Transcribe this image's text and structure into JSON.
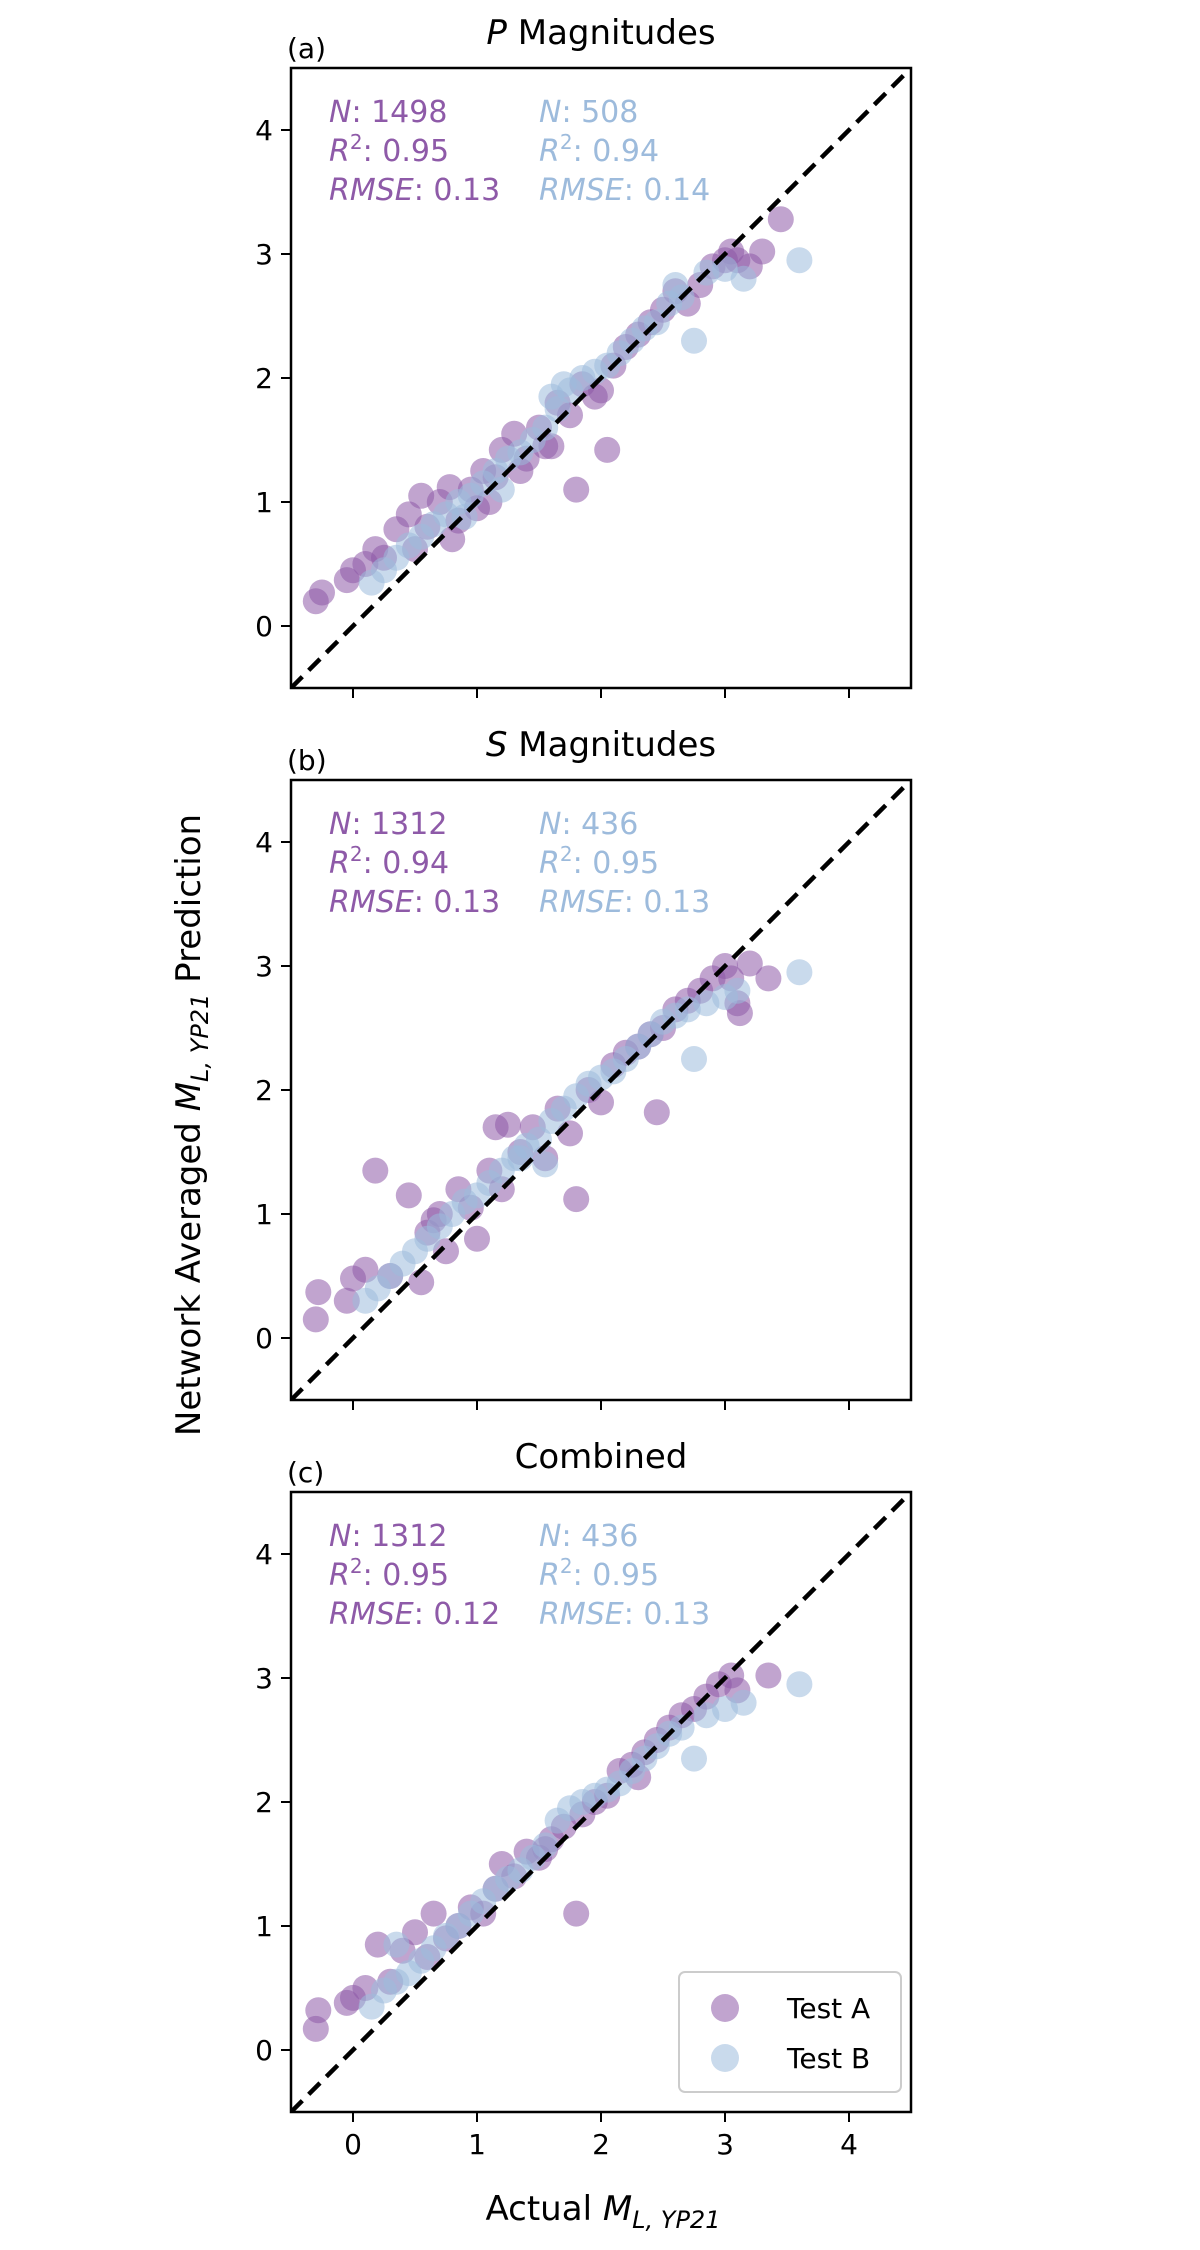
{
  "colors": {
    "test_a": "#8e5aa8",
    "test_b": "#9dbbdc",
    "identity_line": "#000000",
    "axes": "#000000"
  },
  "figure": {
    "ylabel_pre": "Network Averaged ",
    "ylabel_math": "M",
    "ylabel_sub": "L, YP21",
    "ylabel_post": " Prediction",
    "xlabel_pre": "Actual ",
    "xlabel_math": "M",
    "xlabel_sub": "L, YP21"
  },
  "legend": {
    "position": "lower-right",
    "entries": [
      "Test A",
      "Test B"
    ]
  },
  "chart_data": [
    {
      "type": "scatter",
      "panel_label": "(a)",
      "title_italic": "P",
      "title": " Magnitudes",
      "xlim": [
        -0.5,
        4.5
      ],
      "ylim": [
        -0.5,
        4.5
      ],
      "xticks": [
        0,
        1,
        2,
        3,
        4
      ],
      "yticks": [
        0,
        1,
        2,
        3,
        4
      ],
      "grid": false,
      "identity_line": true,
      "stats": [
        {
          "series": "Test A",
          "N": "1498",
          "R2": "0.95",
          "RMSE": "0.13"
        },
        {
          "series": "Test B",
          "N": "508",
          "R2": "0.94",
          "RMSE": "0.14"
        }
      ],
      "series": [
        {
          "name": "Test A",
          "points": [
            [
              -0.3,
              0.2
            ],
            [
              -0.25,
              0.27
            ],
            [
              -0.05,
              0.37
            ],
            [
              0.0,
              0.45
            ],
            [
              0.1,
              0.5
            ],
            [
              0.18,
              0.62
            ],
            [
              0.25,
              0.55
            ],
            [
              0.35,
              0.78
            ],
            [
              0.45,
              0.9
            ],
            [
              0.55,
              1.05
            ],
            [
              0.6,
              0.8
            ],
            [
              0.7,
              1.0
            ],
            [
              0.78,
              1.12
            ],
            [
              0.85,
              0.85
            ],
            [
              0.95,
              1.1
            ],
            [
              1.05,
              1.25
            ],
            [
              1.15,
              1.2
            ],
            [
              1.2,
              1.42
            ],
            [
              1.3,
              1.55
            ],
            [
              1.4,
              1.35
            ],
            [
              1.5,
              1.6
            ],
            [
              1.55,
              1.45
            ],
            [
              1.65,
              1.8
            ],
            [
              1.75,
              1.7
            ],
            [
              1.8,
              1.1
            ],
            [
              1.85,
              1.95
            ],
            [
              1.95,
              1.85
            ],
            [
              2.05,
              1.42
            ],
            [
              2.1,
              2.1
            ],
            [
              2.2,
              2.25
            ],
            [
              2.3,
              2.35
            ],
            [
              2.4,
              2.45
            ],
            [
              2.5,
              2.55
            ],
            [
              2.6,
              2.7
            ],
            [
              2.7,
              2.6
            ],
            [
              2.8,
              2.75
            ],
            [
              2.9,
              2.9
            ],
            [
              3.0,
              2.95
            ],
            [
              3.05,
              3.02
            ],
            [
              3.1,
              2.95
            ],
            [
              3.2,
              2.9
            ],
            [
              3.3,
              3.02
            ],
            [
              3.45,
              3.28
            ],
            [
              0.5,
              0.62
            ],
            [
              0.8,
              0.7
            ],
            [
              1.0,
              0.95
            ],
            [
              1.1,
              1.0
            ],
            [
              1.35,
              1.25
            ],
            [
              1.6,
              1.45
            ],
            [
              2.0,
              1.9
            ]
          ]
        },
        {
          "name": "Test B",
          "points": [
            [
              0.15,
              0.35
            ],
            [
              0.25,
              0.45
            ],
            [
              0.35,
              0.55
            ],
            [
              0.45,
              0.65
            ],
            [
              0.55,
              0.72
            ],
            [
              0.65,
              0.82
            ],
            [
              0.75,
              0.9
            ],
            [
              0.85,
              1.0
            ],
            [
              0.95,
              1.05
            ],
            [
              1.05,
              1.15
            ],
            [
              1.15,
              1.25
            ],
            [
              1.25,
              1.35
            ],
            [
              1.35,
              1.4
            ],
            [
              1.45,
              1.5
            ],
            [
              1.55,
              1.6
            ],
            [
              1.65,
              1.75
            ],
            [
              1.75,
              1.9
            ],
            [
              1.85,
              2.0
            ],
            [
              1.95,
              2.05
            ],
            [
              2.05,
              2.1
            ],
            [
              2.15,
              2.2
            ],
            [
              2.25,
              2.3
            ],
            [
              2.35,
              2.4
            ],
            [
              2.45,
              2.45
            ],
            [
              2.55,
              2.6
            ],
            [
              2.65,
              2.65
            ],
            [
              2.75,
              2.3
            ],
            [
              2.85,
              2.85
            ],
            [
              3.0,
              2.88
            ],
            [
              3.15,
              2.8
            ],
            [
              3.6,
              2.95
            ],
            [
              1.6,
              1.85
            ],
            [
              1.7,
              1.95
            ],
            [
              1.2,
              1.1
            ],
            [
              0.9,
              0.88
            ],
            [
              2.6,
              2.75
            ]
          ]
        }
      ]
    },
    {
      "type": "scatter",
      "panel_label": "(b)",
      "title_italic": "S",
      "title": " Magnitudes",
      "xlim": [
        -0.5,
        4.5
      ],
      "ylim": [
        -0.5,
        4.5
      ],
      "xticks": [
        0,
        1,
        2,
        3,
        4
      ],
      "yticks": [
        0,
        1,
        2,
        3,
        4
      ],
      "grid": false,
      "identity_line": true,
      "stats": [
        {
          "series": "Test A",
          "N": "1312",
          "R2": "0.94",
          "RMSE": "0.13"
        },
        {
          "series": "Test B",
          "N": "436",
          "R2": "0.95",
          "RMSE": "0.13"
        }
      ],
      "series": [
        {
          "name": "Test A",
          "points": [
            [
              -0.3,
              0.15
            ],
            [
              -0.28,
              0.37
            ],
            [
              -0.05,
              0.3
            ],
            [
              0.0,
              0.48
            ],
            [
              0.1,
              0.55
            ],
            [
              0.18,
              1.35
            ],
            [
              0.3,
              0.5
            ],
            [
              0.45,
              1.15
            ],
            [
              0.55,
              0.45
            ],
            [
              0.6,
              0.85
            ],
            [
              0.7,
              1.0
            ],
            [
              0.75,
              0.7
            ],
            [
              0.85,
              1.2
            ],
            [
              0.95,
              1.05
            ],
            [
              1.0,
              0.8
            ],
            [
              1.1,
              1.35
            ],
            [
              1.2,
              1.2
            ],
            [
              1.25,
              1.72
            ],
            [
              1.35,
              1.5
            ],
            [
              1.45,
              1.7
            ],
            [
              1.55,
              1.45
            ],
            [
              1.65,
              1.85
            ],
            [
              1.75,
              1.65
            ],
            [
              1.8,
              1.12
            ],
            [
              1.9,
              2.0
            ],
            [
              2.0,
              1.9
            ],
            [
              2.1,
              2.2
            ],
            [
              2.2,
              2.3
            ],
            [
              2.3,
              2.35
            ],
            [
              2.4,
              2.45
            ],
            [
              2.5,
              2.5
            ],
            [
              2.6,
              2.65
            ],
            [
              2.7,
              2.72
            ],
            [
              2.8,
              2.8
            ],
            [
              2.9,
              2.9
            ],
            [
              3.0,
              3.0
            ],
            [
              3.05,
              2.9
            ],
            [
              3.1,
              2.7
            ],
            [
              3.12,
              2.62
            ],
            [
              3.2,
              3.02
            ],
            [
              3.35,
              2.9
            ],
            [
              2.45,
              1.82
            ],
            [
              1.15,
              1.7
            ],
            [
              0.65,
              0.95
            ]
          ]
        },
        {
          "name": "Test B",
          "points": [
            [
              0.1,
              0.3
            ],
            [
              0.2,
              0.4
            ],
            [
              0.3,
              0.5
            ],
            [
              0.4,
              0.6
            ],
            [
              0.5,
              0.7
            ],
            [
              0.6,
              0.8
            ],
            [
              0.7,
              0.9
            ],
            [
              0.8,
              1.0
            ],
            [
              0.9,
              1.1
            ],
            [
              1.0,
              1.15
            ],
            [
              1.1,
              1.25
            ],
            [
              1.2,
              1.35
            ],
            [
              1.3,
              1.45
            ],
            [
              1.4,
              1.55
            ],
            [
              1.5,
              1.6
            ],
            [
              1.6,
              1.75
            ],
            [
              1.7,
              1.85
            ],
            [
              1.8,
              1.95
            ],
            [
              1.9,
              2.05
            ],
            [
              2.0,
              2.1
            ],
            [
              2.1,
              2.15
            ],
            [
              2.2,
              2.25
            ],
            [
              2.3,
              2.35
            ],
            [
              2.4,
              2.45
            ],
            [
              2.5,
              2.55
            ],
            [
              2.6,
              2.6
            ],
            [
              2.7,
              2.65
            ],
            [
              2.75,
              2.25
            ],
            [
              2.85,
              2.7
            ],
            [
              3.0,
              2.75
            ],
            [
              3.1,
              2.8
            ],
            [
              3.6,
              2.95
            ],
            [
              1.35,
              1.45
            ],
            [
              1.55,
              1.4
            ]
          ]
        }
      ]
    },
    {
      "type": "scatter",
      "panel_label": "(c)",
      "title_italic": "",
      "title": "Combined",
      "xlim": [
        -0.5,
        4.5
      ],
      "ylim": [
        -0.5,
        4.5
      ],
      "xticks": [
        0,
        1,
        2,
        3,
        4
      ],
      "yticks": [
        0,
        1,
        2,
        3,
        4
      ],
      "xlabel_ticks_visible": true,
      "grid": false,
      "identity_line": true,
      "stats": [
        {
          "series": "Test A",
          "N": "1312",
          "R2": "0.95",
          "RMSE": "0.12"
        },
        {
          "series": "Test B",
          "N": "436",
          "R2": "0.95",
          "RMSE": "0.13"
        }
      ],
      "series": [
        {
          "name": "Test A",
          "points": [
            [
              -0.3,
              0.17
            ],
            [
              -0.28,
              0.32
            ],
            [
              -0.05,
              0.38
            ],
            [
              0.0,
              0.42
            ],
            [
              0.1,
              0.5
            ],
            [
              0.2,
              0.85
            ],
            [
              0.3,
              0.55
            ],
            [
              0.4,
              0.8
            ],
            [
              0.5,
              0.95
            ],
            [
              0.6,
              0.75
            ],
            [
              0.65,
              1.1
            ],
            [
              0.75,
              0.9
            ],
            [
              0.85,
              1.0
            ],
            [
              0.95,
              1.15
            ],
            [
              1.05,
              1.1
            ],
            [
              1.15,
              1.3
            ],
            [
              1.2,
              1.5
            ],
            [
              1.3,
              1.4
            ],
            [
              1.4,
              1.6
            ],
            [
              1.5,
              1.55
            ],
            [
              1.6,
              1.7
            ],
            [
              1.7,
              1.8
            ],
            [
              1.8,
              1.1
            ],
            [
              1.85,
              1.9
            ],
            [
              1.95,
              2.0
            ],
            [
              2.05,
              2.05
            ],
            [
              2.15,
              2.25
            ],
            [
              2.25,
              2.3
            ],
            [
              2.35,
              2.4
            ],
            [
              2.45,
              2.5
            ],
            [
              2.55,
              2.6
            ],
            [
              2.65,
              2.7
            ],
            [
              2.75,
              2.75
            ],
            [
              2.85,
              2.85
            ],
            [
              2.95,
              2.95
            ],
            [
              3.05,
              3.02
            ],
            [
              3.1,
              2.9
            ],
            [
              3.35,
              3.02
            ],
            [
              2.3,
              2.2
            ],
            [
              1.55,
              1.62
            ]
          ]
        },
        {
          "name": "Test B",
          "points": [
            [
              0.15,
              0.35
            ],
            [
              0.25,
              0.48
            ],
            [
              0.35,
              0.55
            ],
            [
              0.45,
              0.62
            ],
            [
              0.55,
              0.72
            ],
            [
              0.65,
              0.82
            ],
            [
              0.75,
              0.92
            ],
            [
              0.85,
              1.0
            ],
            [
              0.95,
              1.1
            ],
            [
              1.05,
              1.2
            ],
            [
              1.15,
              1.3
            ],
            [
              1.25,
              1.38
            ],
            [
              1.35,
              1.45
            ],
            [
              1.45,
              1.55
            ],
            [
              1.55,
              1.65
            ],
            [
              1.65,
              1.85
            ],
            [
              1.75,
              1.95
            ],
            [
              1.85,
              2.0
            ],
            [
              1.95,
              2.05
            ],
            [
              2.05,
              2.1
            ],
            [
              2.15,
              2.15
            ],
            [
              2.25,
              2.25
            ],
            [
              2.35,
              2.35
            ],
            [
              2.45,
              2.45
            ],
            [
              2.55,
              2.55
            ],
            [
              2.65,
              2.6
            ],
            [
              2.75,
              2.35
            ],
            [
              2.85,
              2.7
            ],
            [
              3.0,
              2.75
            ],
            [
              3.15,
              2.8
            ],
            [
              3.6,
              2.95
            ],
            [
              0.35,
              0.85
            ]
          ]
        }
      ]
    }
  ]
}
